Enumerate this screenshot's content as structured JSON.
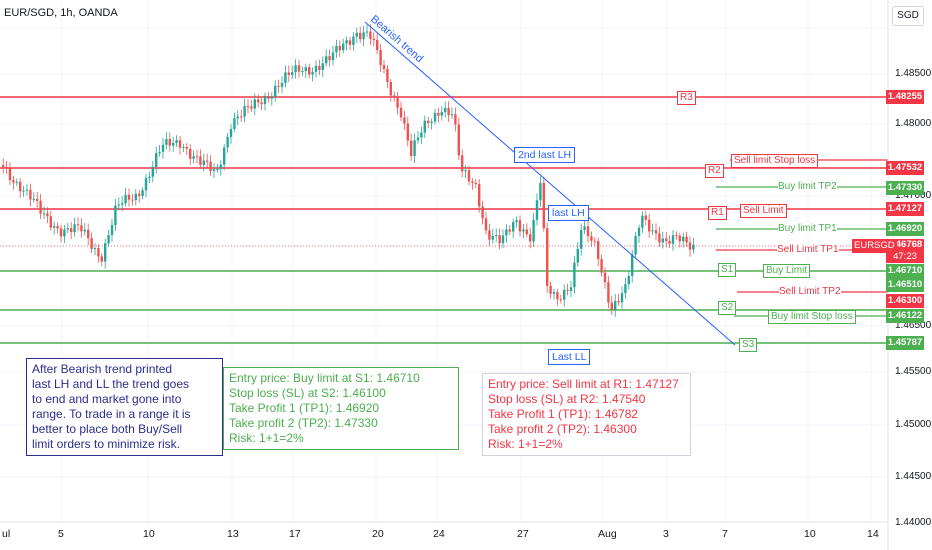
{
  "header": {
    "symbol": "EUR/SGD, 1h, OANDA",
    "currency": "SGD"
  },
  "axis": {
    "price_ticks": [
      "1.48500",
      "1.48000",
      "1.47000",
      "1.46500",
      "1.45000",
      "1.44500",
      "1.44000",
      "1.45500"
    ],
    "date_ticks": [
      "ul",
      "5",
      "10",
      "13",
      "17",
      "20",
      "24",
      "27",
      "Aug",
      "3",
      "7",
      "10",
      "14"
    ]
  },
  "levels": {
    "r3": "R3",
    "r2": "R2",
    "r1": "R1",
    "s1": "S1",
    "s2": "S2",
    "s3": "S3",
    "p_48255": "1.48255",
    "p_47532": "1.47532",
    "p_47330": "1.47330",
    "p_47127": "1.47127",
    "p_46920": "1.46920",
    "p_46768": "1.46768",
    "timer": "47:23",
    "p_46710": "1.46710",
    "p_46510": "1.46510",
    "p_46300": "1.46300",
    "p_46122": "1.46122",
    "p_45787": "1.45787",
    "symbol_tag": "EURSGD"
  },
  "notes": {
    "bearish_trend": "Bearish trend",
    "second_last_lh": "2nd last LH",
    "last_lh": "last LH",
    "last_ll": "Last LL",
    "sell_limit_stop_loss": "Sell limit Stop loss",
    "buy_limit_tp2": "Buy limit TP2",
    "sell_limit": "Sell Limit",
    "buy_limit_tp1": "Buy limit TP1",
    "sell_limit_tp1": "Sell Limit TP1",
    "buy_limit": "Buy Limit",
    "sell_limit_tp2": "Sell Limit TP2",
    "buy_limit_stop_loss": "Buy limit Stop loss"
  },
  "boxes": {
    "explain": [
      "After Bearish trend printed",
      "last LH and LL the trend goes",
      "to end and market gone into",
      "range. To trade in a range it is",
      "better to place both Buy/Sell",
      "limit orders to minimize risk."
    ],
    "buy": [
      "Entry price: Buy limit at S1: 1.46710",
      "Stop loss (SL) at S2: 1.46100",
      "Take Profit 1 (TP1): 1.46920",
      "Take profit 2 (TP2): 1.47330",
      "Risk: 1+1=2%"
    ],
    "sell": [
      "Entry price: Sell limit at R1: 1.47127",
      "Stop loss (SL) at R2: 1.47540",
      "Take Profit 1 (TP1): 1.46782",
      "Take profit 2 (TP2): 1.46300",
      "Risk: 1+1=2%"
    ]
  },
  "colors": {
    "red": "#f23645",
    "green": "#4caf50",
    "blue": "#2962ff",
    "navy": "#2a2e90",
    "grid": "#f0f3fa"
  }
}
